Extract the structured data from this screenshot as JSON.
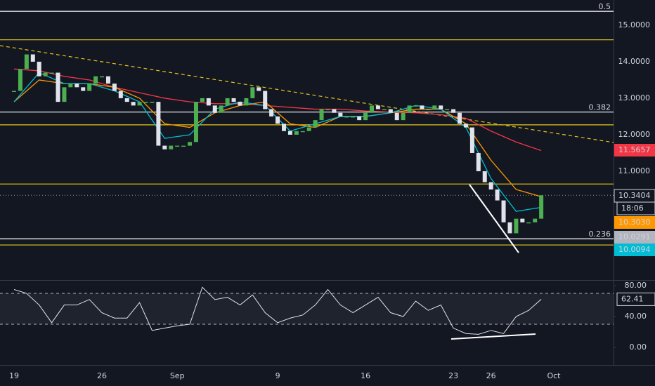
{
  "chart_data": {
    "type": "candlestick",
    "xlim": [
      -1.12,
      47.76
    ],
    "xticks": [
      {
        "value": 0,
        "label": "19"
      },
      {
        "value": 7,
        "label": "26"
      },
      {
        "value": 13,
        "label": "Sep"
      },
      {
        "value": 21,
        "label": "9"
      },
      {
        "value": 28,
        "label": "16"
      },
      {
        "value": 35,
        "label": "23"
      },
      {
        "value": 38,
        "label": "26"
      },
      {
        "value": 43,
        "label": "Oct"
      }
    ],
    "ylim": [
      8.02,
      15.69
    ],
    "yticks": [
      {
        "value": 15,
        "label": "15.0000"
      },
      {
        "value": 14,
        "label": "14.0000"
      },
      {
        "value": 13,
        "label": "13.0000"
      },
      {
        "value": 12,
        "label": "12.0000"
      },
      {
        "value": 11,
        "label": "11.0000"
      }
    ],
    "price": {
      "up_color": "#4caf50",
      "down_color": "#e0e3eb",
      "x": [
        0,
        0.5,
        1,
        1.5,
        2,
        2.5,
        3,
        3.5,
        4,
        4.5,
        5,
        5.5,
        6,
        6.5,
        7,
        7.5,
        8,
        8.5,
        9,
        9.5,
        10,
        10.5,
        11,
        11.5,
        12,
        12.5,
        13,
        13.5,
        14,
        14.5,
        15,
        15.5,
        16,
        16.5,
        17,
        17.5,
        18,
        18.5,
        19,
        19.5,
        20,
        20.5,
        21,
        21.5,
        22,
        22.5,
        23,
        23.5,
        24,
        24.5,
        25,
        25.5,
        26,
        26.5,
        27,
        27.5,
        28,
        28.5,
        29,
        29.5,
        30,
        30.5,
        31,
        31.5,
        32,
        32.5,
        33,
        33.5,
        34,
        34.5,
        35,
        35.5,
        36,
        36.5,
        37,
        37.5,
        38,
        38.5,
        39,
        39.5,
        40,
        40.5,
        41,
        41.5,
        42
      ],
      "values": [
        13.2,
        13.8,
        14.2,
        14.0,
        13.6,
        13.7,
        13.7,
        12.9,
        13.3,
        13.4,
        13.3,
        13.2,
        13.4,
        13.6,
        13.6,
        13.4,
        13.2,
        13.0,
        12.9,
        12.8,
        12.9,
        12.9,
        12.9,
        11.7,
        11.6,
        11.7,
        11.7,
        11.7,
        11.8,
        12.9,
        13.0,
        12.8,
        12.6,
        12.8,
        13.0,
        12.9,
        12.8,
        13.0,
        13.3,
        13.2,
        12.7,
        12.5,
        12.3,
        12.1,
        12.0,
        12.1,
        12.1,
        12.2,
        12.4,
        12.7,
        12.7,
        12.6,
        12.5,
        12.5,
        12.5,
        12.4,
        12.6,
        12.8,
        12.7,
        12.7,
        12.6,
        12.4,
        12.6,
        12.8,
        12.8,
        12.7,
        12.7,
        12.8,
        12.7,
        12.7,
        12.6,
        12.3,
        12.2,
        11.5,
        11.0,
        10.7,
        10.5,
        10.2,
        9.6,
        9.3,
        9.7,
        9.6,
        9.6,
        9.7,
        10.3404
      ]
    },
    "moving_averages": [
      {
        "color": "#f23645",
        "x": [
          0,
          2,
          4,
          6,
          8,
          10,
          12,
          14,
          16,
          18,
          20,
          22,
          24,
          26,
          28,
          30,
          32,
          34,
          36,
          38,
          40,
          42
        ],
        "values": [
          13.8,
          13.75,
          13.6,
          13.5,
          13.3,
          13.15,
          13.0,
          12.9,
          12.85,
          12.85,
          12.8,
          12.75,
          12.7,
          12.7,
          12.65,
          12.62,
          12.6,
          12.55,
          12.45,
          12.1,
          11.8,
          11.5657
        ]
      },
      {
        "color": "#ff9800",
        "x": [
          0,
          2,
          4,
          6,
          8,
          10,
          12,
          14,
          16,
          18,
          20,
          22,
          24,
          26,
          28,
          30,
          32,
          34,
          36,
          38,
          40,
          42
        ],
        "values": [
          12.9,
          13.5,
          13.4,
          13.4,
          13.3,
          13.0,
          12.3,
          12.2,
          12.6,
          12.8,
          12.9,
          12.3,
          12.2,
          12.5,
          12.5,
          12.6,
          12.7,
          12.7,
          12.3,
          11.3,
          10.5,
          10.303
        ]
      },
      {
        "color": "#00bcd4",
        "x": [
          0,
          2,
          4,
          6,
          8,
          10,
          12,
          14,
          16,
          18,
          20,
          22,
          24,
          26,
          28,
          30,
          32,
          34,
          36,
          38,
          40,
          42
        ],
        "values": [
          12.9,
          13.7,
          13.4,
          13.4,
          13.2,
          12.9,
          11.9,
          12.0,
          12.7,
          12.9,
          12.8,
          12.1,
          12.3,
          12.5,
          12.5,
          12.6,
          12.8,
          12.7,
          12.2,
          10.8,
          9.9,
          10.0094
        ]
      }
    ],
    "levels": [
      {
        "value": 15.38,
        "label": "0.5",
        "color": "#ffffff"
      },
      {
        "value": 14.6,
        "color": "#e6c619"
      },
      {
        "value": 12.62,
        "label": "0.382",
        "color": "#ffffff"
      },
      {
        "value": 12.27,
        "color": "#e6c619"
      },
      {
        "value": 10.65,
        "color": "#e6c619"
      },
      {
        "value": 9.15,
        "label": "0.236",
        "color": "#ffffff"
      },
      {
        "value": 8.98,
        "color": "#e6c619"
      }
    ],
    "price_labels": [
      {
        "label": "11.5657",
        "color": "#f23645"
      },
      {
        "label": "10.3404",
        "color": "#131722"
      },
      {
        "label": "10.3030",
        "color": "#ff9800"
      },
      {
        "label": "10.0291",
        "color": "#b2b5be"
      },
      {
        "label": "10.0094",
        "color": "#00bcd4"
      }
    ],
    "countdown": "18:06",
    "rsi": {
      "color": "#e0e3eb",
      "ylim": [
        -22.7,
        86.4
      ],
      "yticks": [
        {
          "value": 80,
          "label": "80.00"
        },
        {
          "value": 40,
          "label": "40.00"
        },
        {
          "value": 0,
          "label": "0.00"
        }
      ],
      "band": [
        30,
        70
      ],
      "value_label": "62.41",
      "x": [
        0,
        1,
        2,
        3,
        4,
        5,
        6,
        7,
        8,
        9,
        10,
        11,
        12,
        13,
        14,
        15,
        16,
        17,
        18,
        19,
        20,
        21,
        22,
        23,
        24,
        25,
        26,
        27,
        28,
        29,
        30,
        31,
        32,
        33,
        34,
        35,
        36,
        37,
        38,
        39,
        40,
        41,
        42
      ],
      "values": [
        75,
        70,
        55,
        32,
        55,
        55,
        62,
        45,
        38,
        38,
        58,
        22,
        25,
        28,
        30,
        78,
        62,
        65,
        55,
        68,
        45,
        32,
        38,
        42,
        55,
        75,
        55,
        45,
        55,
        65,
        45,
        40,
        60,
        48,
        55,
        25,
        18,
        17,
        22,
        18,
        40,
        48,
        62.41
      ]
    }
  }
}
